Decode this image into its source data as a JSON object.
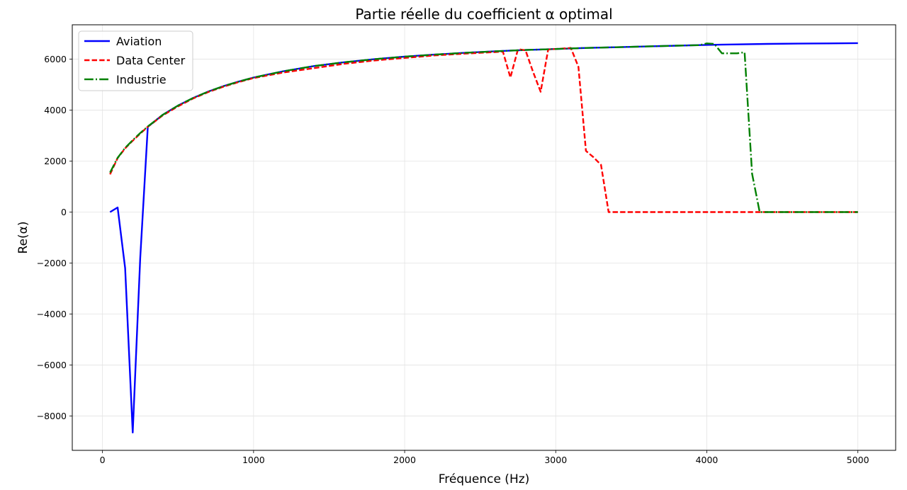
{
  "chart_data": {
    "type": "line",
    "title": "Partie réelle du coefficient α optimal",
    "xlabel": "Fréquence (Hz)",
    "ylabel": "Re(α)",
    "xlim": [
      -200,
      5250
    ],
    "ylim": [
      -9350,
      7350
    ],
    "xticks": [
      0,
      1000,
      2000,
      3000,
      4000,
      5000
    ],
    "xtick_labels": [
      "0",
      "1000",
      "2000",
      "3000",
      "4000",
      "5000"
    ],
    "yticks": [
      -8000,
      -6000,
      -4000,
      -2000,
      0,
      2000,
      4000,
      6000
    ],
    "ytick_labels": [
      "−8000",
      "−6000",
      "−4000",
      "−2000",
      "0",
      "2000",
      "4000",
      "6000"
    ],
    "grid": true,
    "legend_position": "top-left",
    "series": [
      {
        "name": "Aviation",
        "color": "#0000ff",
        "style": "solid",
        "x": [
          50,
          100,
          150,
          200,
          250,
          300,
          400,
          500,
          600,
          700,
          800,
          900,
          1000,
          1200,
          1400,
          1600,
          1800,
          2000,
          2200,
          2400,
          2600,
          2800,
          3000,
          3200,
          3400,
          3600,
          3800,
          4000,
          4200,
          4400,
          4600,
          4800,
          5000
        ],
        "y": [
          0,
          180,
          -2200,
          -8650,
          -1800,
          3350,
          3820,
          4180,
          4480,
          4730,
          4940,
          5120,
          5280,
          5530,
          5730,
          5880,
          6000,
          6100,
          6180,
          6250,
          6310,
          6360,
          6400,
          6440,
          6470,
          6500,
          6530,
          6560,
          6580,
          6600,
          6610,
          6620,
          6630
        ]
      },
      {
        "name": "Data Center",
        "color": "#ff0000",
        "style": "dashed",
        "x": [
          50,
          100,
          150,
          200,
          250,
          300,
          400,
          500,
          600,
          700,
          800,
          900,
          1000,
          1200,
          1400,
          1600,
          1800,
          2000,
          2200,
          2400,
          2600,
          2650,
          2700,
          2750,
          2800,
          2850,
          2900,
          2950,
          3000,
          3050,
          3100,
          3150,
          3200,
          3250,
          3300,
          3350,
          3500,
          4000,
          4500,
          5000
        ],
        "y": [
          1480,
          2120,
          2500,
          2800,
          3080,
          3350,
          3800,
          4150,
          4460,
          4710,
          4920,
          5100,
          5260,
          5480,
          5650,
          5820,
          5950,
          6050,
          6150,
          6220,
          6280,
          6300,
          5280,
          6390,
          6350,
          5500,
          4720,
          6380,
          6400,
          6420,
          6440,
          5700,
          2400,
          2150,
          1850,
          0,
          0,
          0,
          0,
          0
        ]
      },
      {
        "name": "Industrie",
        "color": "#008000",
        "style": "dashdot",
        "x": [
          50,
          100,
          150,
          200,
          250,
          300,
          400,
          500,
          600,
          700,
          800,
          900,
          1000,
          1200,
          1400,
          1600,
          1800,
          2000,
          2200,
          2400,
          2600,
          2800,
          3000,
          3200,
          3400,
          3600,
          3800,
          3950,
          4000,
          4050,
          4100,
          4150,
          4200,
          4250,
          4300,
          4350,
          4500,
          5000
        ],
        "y": [
          1550,
          2130,
          2520,
          2820,
          3100,
          3360,
          3820,
          4180,
          4480,
          4730,
          4940,
          5120,
          5280,
          5530,
          5730,
          5880,
          6000,
          6100,
          6180,
          6250,
          6310,
          6360,
          6400,
          6440,
          6470,
          6500,
          6530,
          6550,
          6620,
          6600,
          6230,
          6230,
          6230,
          6270,
          1500,
          0,
          0,
          0
        ]
      }
    ]
  }
}
